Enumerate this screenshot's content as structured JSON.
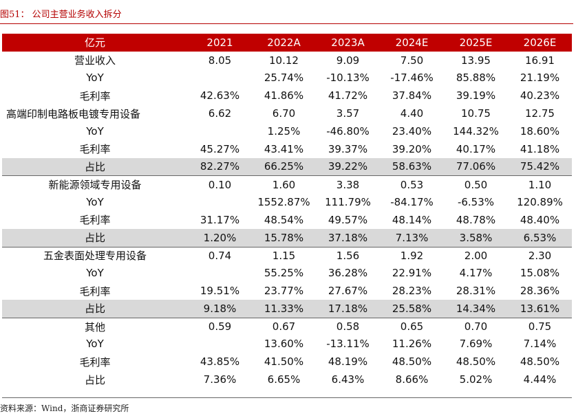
{
  "caption": "图51：  公司主营业务收入拆分",
  "source": "资料来源：Wind，浙商证券研究所",
  "header": [
    "亿元",
    "2021",
    "2022A",
    "2023A",
    "2024E",
    "2025E",
    "2026E"
  ],
  "rows": [
    {
      "label": "营业收入",
      "values": [
        "8.05",
        "10.12",
        "9.09",
        "7.50",
        "13.95",
        "16.91"
      ],
      "shade": false
    },
    {
      "label": "YoY",
      "values": [
        "",
        "25.74%",
        "-10.13%",
        "-17.46%",
        "85.88%",
        "21.19%"
      ],
      "shade": false
    },
    {
      "label": "毛利率",
      "values": [
        "42.63%",
        "41.86%",
        "41.72%",
        "37.84%",
        "39.19%",
        "40.23%"
      ],
      "shade": false
    },
    {
      "label": "高端印制电路板电镀专用设备",
      "values": [
        "6.62",
        "6.70",
        "3.57",
        "4.40",
        "10.75",
        "12.75"
      ],
      "shade": false
    },
    {
      "label": "YoY",
      "values": [
        "",
        "1.25%",
        "-46.80%",
        "23.40%",
        "144.32%",
        "18.60%"
      ],
      "shade": false
    },
    {
      "label": "毛利率",
      "values": [
        "45.27%",
        "43.41%",
        "39.37%",
        "39.20%",
        "40.17%",
        "41.18%"
      ],
      "shade": false
    },
    {
      "label": "占比",
      "values": [
        "82.27%",
        "66.25%",
        "39.22%",
        "58.63%",
        "77.06%",
        "75.42%"
      ],
      "shade": true
    },
    {
      "label": "新能源领域专用设备",
      "values": [
        "0.10",
        "1.60",
        "3.38",
        "0.53",
        "0.50",
        "1.10"
      ],
      "shade": false
    },
    {
      "label": "YoY",
      "values": [
        "",
        "1552.87%",
        "111.79%",
        "-84.17%",
        "-6.53%",
        "120.89%"
      ],
      "shade": false
    },
    {
      "label": "毛利率",
      "values": [
        "31.17%",
        "48.54%",
        "49.57%",
        "48.14%",
        "48.78%",
        "48.40%"
      ],
      "shade": false
    },
    {
      "label": "占比",
      "values": [
        "1.20%",
        "15.78%",
        "37.18%",
        "7.13%",
        "3.58%",
        "6.53%"
      ],
      "shade": true
    },
    {
      "label": "五金表面处理专用设备",
      "values": [
        "0.74",
        "1.15",
        "1.56",
        "1.92",
        "2.00",
        "2.30"
      ],
      "shade": false
    },
    {
      "label": "YoY",
      "values": [
        "",
        "55.25%",
        "36.28%",
        "22.91%",
        "4.17%",
        "15.08%"
      ],
      "shade": false
    },
    {
      "label": "毛利率",
      "values": [
        "19.51%",
        "23.77%",
        "27.67%",
        "28.23%",
        "28.31%",
        "28.36%"
      ],
      "shade": false
    },
    {
      "label": "占比",
      "values": [
        "9.18%",
        "11.33%",
        "17.18%",
        "25.58%",
        "14.34%",
        "13.61%"
      ],
      "shade": true
    },
    {
      "label": "其他",
      "values": [
        "0.59",
        "0.67",
        "0.58",
        "0.65",
        "0.70",
        "0.75"
      ],
      "shade": false
    },
    {
      "label": "YoY",
      "values": [
        "",
        "13.60%",
        "-13.11%",
        "11.26%",
        "7.69%",
        "7.14%"
      ],
      "shade": false
    },
    {
      "label": "毛利率",
      "values": [
        "43.85%",
        "41.50%",
        "48.19%",
        "48.50%",
        "48.50%",
        "48.50%"
      ],
      "shade": false
    },
    {
      "label": "占比",
      "values": [
        "7.36%",
        "6.65%",
        "6.43%",
        "8.66%",
        "5.02%",
        "4.44%"
      ],
      "shade": false
    }
  ]
}
